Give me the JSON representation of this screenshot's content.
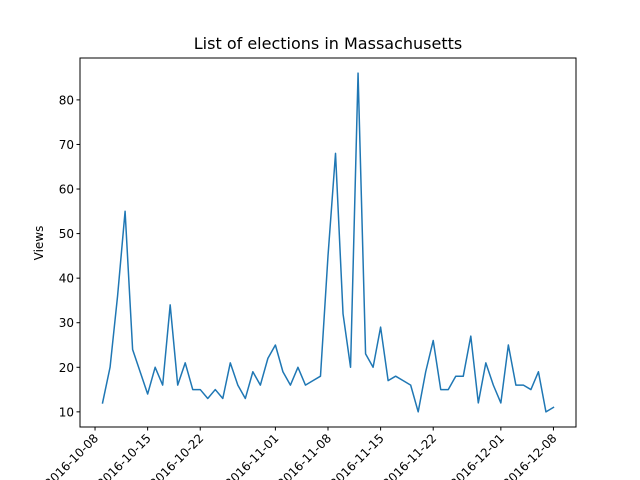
{
  "chart_data": {
    "type": "line",
    "title": "List of elections in Massachusetts",
    "xlabel": "",
    "ylabel": "Views",
    "x_axis_type": "date",
    "xlim": [
      "2016-10-06",
      "2016-12-11"
    ],
    "ylim": [
      6.6,
      89.4
    ],
    "xticks": [
      "2016-10-08",
      "2016-10-15",
      "2016-10-22",
      "2016-11-01",
      "2016-11-08",
      "2016-11-15",
      "2016-11-22",
      "2016-12-01",
      "2016-12-08"
    ],
    "yticks": [
      10,
      20,
      30,
      40,
      50,
      60,
      70,
      80
    ],
    "grid": false,
    "line_color": "#1f77b4",
    "x": [
      "2016-10-09",
      "2016-10-10",
      "2016-10-11",
      "2016-10-12",
      "2016-10-13",
      "2016-10-14",
      "2016-10-15",
      "2016-10-16",
      "2016-10-17",
      "2016-10-18",
      "2016-10-19",
      "2016-10-20",
      "2016-10-21",
      "2016-10-22",
      "2016-10-23",
      "2016-10-24",
      "2016-10-25",
      "2016-10-26",
      "2016-10-27",
      "2016-10-28",
      "2016-10-29",
      "2016-10-30",
      "2016-10-31",
      "2016-11-01",
      "2016-11-02",
      "2016-11-03",
      "2016-11-04",
      "2016-11-05",
      "2016-11-06",
      "2016-11-07",
      "2016-11-08",
      "2016-11-09",
      "2016-11-10",
      "2016-11-11",
      "2016-11-12",
      "2016-11-13",
      "2016-11-14",
      "2016-11-15",
      "2016-11-16",
      "2016-11-17",
      "2016-11-18",
      "2016-11-19",
      "2016-11-20",
      "2016-11-21",
      "2016-11-22",
      "2016-11-23",
      "2016-11-24",
      "2016-11-25",
      "2016-11-26",
      "2016-11-27",
      "2016-11-28",
      "2016-11-29",
      "2016-11-30",
      "2016-12-01",
      "2016-12-02",
      "2016-12-03",
      "2016-12-04",
      "2016-12-05",
      "2016-12-06",
      "2016-12-07",
      "2016-12-08"
    ],
    "series": [
      {
        "values": [
          12,
          20,
          36,
          55,
          24,
          19,
          14,
          20,
          16,
          34,
          16,
          21,
          15,
          15,
          13,
          15,
          13,
          21,
          16,
          13,
          19,
          16,
          22,
          25,
          19,
          16,
          20,
          16,
          17,
          18,
          45,
          68,
          32,
          20,
          86,
          23,
          20,
          29,
          17,
          18,
          17,
          16,
          10,
          19,
          26,
          15,
          15,
          18,
          18,
          27,
          12,
          21,
          16,
          12,
          25,
          16,
          16,
          15,
          19,
          10,
          11
        ]
      }
    ]
  }
}
